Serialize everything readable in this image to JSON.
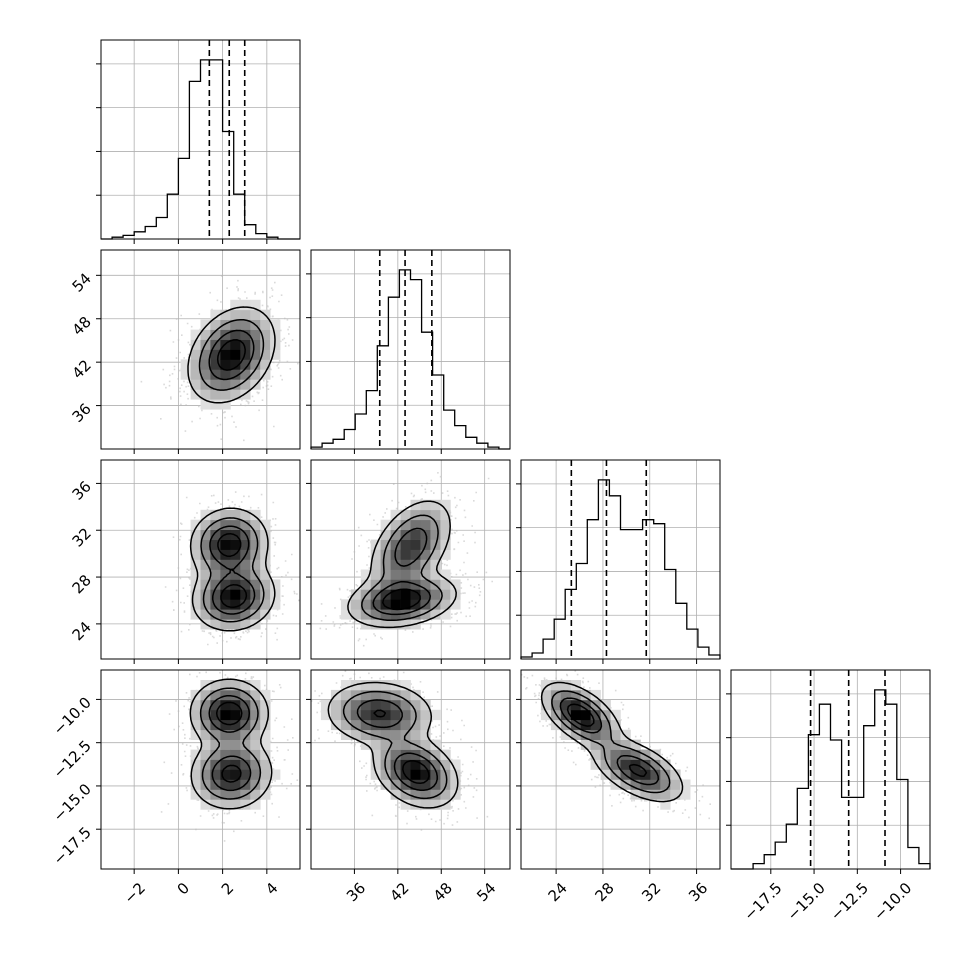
{
  "chart_data": {
    "type": "corner",
    "n_params": 4,
    "quantile_levels": [
      0.16,
      0.5,
      0.84
    ],
    "grid": true,
    "colors": {
      "hist": "#000000",
      "contour": "#000000",
      "points": "#bbbbbb",
      "grid": "#b0b0b0"
    },
    "params": [
      {
        "range": [
          -3.5,
          5.5
        ],
        "ticks": [
          -2,
          0,
          2,
          4
        ],
        "tick_labels": [
          "−2",
          "0",
          "2",
          "4"
        ],
        "quantiles": [
          1.4,
          2.3,
          3.0
        ]
      },
      {
        "range": [
          30.0,
          57.5
        ],
        "ticks": [
          36,
          42,
          48,
          54
        ],
        "tick_labels": [
          "36",
          "42",
          "48",
          "54"
        ],
        "quantiles": [
          39.5,
          43.0,
          46.7
        ]
      },
      {
        "range": [
          21.0,
          38.0
        ],
        "ticks": [
          24,
          28,
          32,
          36
        ],
        "tick_labels": [
          "24",
          "28",
          "32",
          "36"
        ],
        "quantiles": [
          25.3,
          28.3,
          31.7
        ]
      },
      {
        "range": [
          -19.8,
          -8.3
        ],
        "ticks": [
          -17.5,
          -15.0,
          -12.5,
          -10.0
        ],
        "tick_labels": [
          "−17.5",
          "−15.0",
          "−12.5",
          "−10.0"
        ],
        "quantiles": [
          -15.2,
          -13.0,
          -10.9
        ]
      }
    ],
    "histograms": [
      {
        "counts": [
          0,
          1,
          2,
          4,
          7,
          12,
          25,
          45,
          88,
          100,
          100,
          60,
          25,
          8,
          3,
          1,
          0,
          0
        ]
      },
      {
        "counts": [
          1,
          3,
          5,
          10,
          18,
          30,
          53,
          78,
          92,
          87,
          60,
          38,
          20,
          12,
          6,
          3,
          1,
          0
        ]
      },
      {
        "counts": [
          1,
          3,
          10,
          20,
          35,
          48,
          70,
          90,
          82,
          65,
          65,
          70,
          68,
          45,
          28,
          15,
          6,
          2
        ]
      },
      {
        "counts": [
          0,
          0,
          3,
          8,
          15,
          25,
          45,
          75,
          92,
          72,
          40,
          40,
          80,
          100,
          92,
          50,
          12,
          3
        ]
      }
    ],
    "panels": [
      {
        "row": 1,
        "col": 0,
        "blobs": [
          {
            "cx": 2.4,
            "cy": 43.0,
            "sx": 0.95,
            "sy": 3.2,
            "rho": 0.3
          }
        ]
      },
      {
        "row": 2,
        "col": 0,
        "blobs": [
          {
            "cx": 2.3,
            "cy": 30.8,
            "sx": 0.85,
            "sy": 1.5,
            "rho": 0.05
          },
          {
            "cx": 2.5,
            "cy": 26.3,
            "sx": 0.9,
            "sy": 1.4,
            "rho": 0.1
          }
        ]
      },
      {
        "row": 2,
        "col": 1,
        "blobs": [
          {
            "cx": 43.8,
            "cy": 30.6,
            "sx": 2.8,
            "sy": 2.0,
            "rho": 0.45
          },
          {
            "cx": 42.6,
            "cy": 26.0,
            "sx": 3.6,
            "sy": 1.1,
            "rho": 0.25
          }
        ]
      },
      {
        "row": 3,
        "col": 0,
        "blobs": [
          {
            "cx": 2.3,
            "cy": -10.8,
            "sx": 0.85,
            "sy": 0.95,
            "rho": 0.0
          },
          {
            "cx": 2.4,
            "cy": -14.3,
            "sx": 0.9,
            "sy": 1.0,
            "rho": 0.05
          }
        ]
      },
      {
        "row": 3,
        "col": 1,
        "blobs": [
          {
            "cx": 39.5,
            "cy": -10.8,
            "sx": 3.6,
            "sy": 0.9,
            "rho": -0.1
          },
          {
            "cx": 44.5,
            "cy": -14.2,
            "sx": 2.8,
            "sy": 1.0,
            "rho": -0.3
          }
        ]
      },
      {
        "row": 3,
        "col": 2,
        "blobs": [
          {
            "cx": 26.1,
            "cy": -10.9,
            "sx": 1.6,
            "sy": 0.9,
            "rho": -0.55
          },
          {
            "cx": 31.0,
            "cy": -14.1,
            "sx": 1.9,
            "sy": 0.9,
            "rho": -0.55
          }
        ]
      }
    ]
  }
}
